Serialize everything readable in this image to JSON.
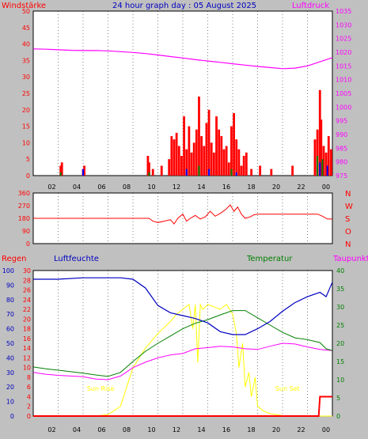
{
  "title": "24 hour graph day : 05 August 2025",
  "x_tick_labels": [
    "02",
    "04",
    "06",
    "08",
    "10",
    "12",
    "14",
    "16",
    "18",
    "20",
    "22",
    "00"
  ],
  "colors": {
    "background": "#c0c0c0",
    "plot_bg": "#ffffff",
    "wind": "#ff0000",
    "gust_low": "#008000",
    "gust_blue": "#0000ff",
    "pressure": "#ff00ff",
    "direction": "#ff0000",
    "humidity": "#0000c0",
    "temperature": "#008000",
    "dewpoint": "#ff00ff",
    "solar": "#ffff00",
    "rain": "#ff0000",
    "sun_marker": "#ffff00"
  },
  "chart_data": [
    {
      "type": "bar",
      "name": "wind-pressure-panel",
      "left_label": "Windstärke",
      "right_label": "Luftdruck",
      "left_ylim": [
        0,
        50
      ],
      "left_ticks": [
        "0",
        "5",
        "10",
        "15",
        "20",
        "25",
        "30",
        "35",
        "40",
        "45",
        "50"
      ],
      "right_ylim": [
        975,
        1035
      ],
      "right_ticks": [
        "975",
        "980",
        "985",
        "990",
        "995",
        "1000",
        "1005",
        "1010",
        "1015",
        "1020",
        "1025",
        "1030",
        "1035"
      ],
      "xlim": [
        0,
        24
      ],
      "wind_bars": {
        "x": [
          2.2,
          2.3,
          4.0,
          4.1,
          9.2,
          9.3,
          9.6,
          10.3,
          10.9,
          11.1,
          11.3,
          11.5,
          11.7,
          11.9,
          12.1,
          12.3,
          12.5,
          12.7,
          12.9,
          13.1,
          13.3,
          13.5,
          13.7,
          13.9,
          14.1,
          14.3,
          14.5,
          14.7,
          14.9,
          15.1,
          15.3,
          15.5,
          15.7,
          15.9,
          16.1,
          16.3,
          16.5,
          16.7,
          16.9,
          17.1,
          17.5,
          18.2,
          19.1,
          20.8,
          22.6,
          22.8,
          23.0,
          23.1,
          23.3,
          23.5,
          23.7,
          23.9
        ],
        "values": [
          3,
          4,
          2,
          3,
          6,
          4,
          2,
          3,
          5,
          12,
          11,
          13,
          9,
          6,
          18,
          8,
          15,
          7,
          10,
          14,
          24,
          12,
          9,
          16,
          20,
          10,
          7,
          18,
          14,
          12,
          8,
          9,
          4,
          15,
          19,
          11,
          8,
          3,
          6,
          7,
          2,
          3,
          2,
          3,
          11,
          14,
          26,
          17,
          9,
          7,
          12,
          8
        ]
      },
      "gust_bars": {
        "x": [
          2.2,
          4.0,
          9.3,
          12.3,
          13.3,
          14.1,
          15.9,
          16.3,
          22.8,
          23.0,
          23.2,
          23.6
        ],
        "values": [
          1,
          2,
          1,
          2,
          3,
          2,
          2,
          1,
          6,
          4,
          5,
          3
        ]
      },
      "pressure": {
        "x": [
          0,
          1,
          2,
          3,
          4,
          5,
          6,
          7,
          8,
          9,
          10,
          11,
          12,
          13,
          14,
          15,
          16,
          17,
          18,
          19,
          20,
          21,
          22,
          23,
          24
        ],
        "values": [
          1021.2,
          1021.1,
          1020.9,
          1020.7,
          1020.6,
          1020.6,
          1020.5,
          1020.2,
          1019.9,
          1019.5,
          1019.0,
          1018.4,
          1017.9,
          1017.3,
          1016.8,
          1016.3,
          1015.8,
          1015.3,
          1014.8,
          1014.4,
          1014.0,
          1014.2,
          1015.0,
          1016.5,
          1018.0
        ]
      }
    },
    {
      "type": "line",
      "name": "wind-direction-panel",
      "ylim": [
        0,
        360
      ],
      "left_ticks": [
        "0",
        "90",
        "180",
        "270",
        "360"
      ],
      "right_labels": [
        "N",
        "W",
        "S",
        "O",
        "N"
      ],
      "x": [
        0,
        9.3,
        9.6,
        10.0,
        10.5,
        11.0,
        11.3,
        11.6,
        12.0,
        12.3,
        12.6,
        13.0,
        13.4,
        13.8,
        14.2,
        14.6,
        15.0,
        15.4,
        15.8,
        16.1,
        16.4,
        16.7,
        17.0,
        17.4,
        17.7,
        18.0,
        22.8,
        23.2,
        23.6,
        24
      ],
      "values": [
        180,
        180,
        160,
        150,
        160,
        170,
        140,
        180,
        210,
        160,
        180,
        200,
        175,
        190,
        230,
        195,
        215,
        240,
        275,
        230,
        260,
        210,
        180,
        190,
        205,
        210,
        210,
        195,
        175,
        175
      ]
    },
    {
      "type": "line",
      "name": "weather-panel",
      "labels": [
        "Regen",
        "Luftfeuchte",
        "Temperatur",
        "Taupunkt"
      ],
      "rain_ticks": [
        "0",
        "2",
        "4",
        "6",
        "8",
        "10",
        "12",
        "14",
        "16",
        "18",
        "20",
        "22",
        "24",
        "26",
        "28",
        "30"
      ],
      "humidity_ticks": [
        "0",
        "10",
        "20",
        "30",
        "40",
        "50",
        "60",
        "70",
        "80",
        "90",
        "100"
      ],
      "temp_ticks": [
        "0",
        "5",
        "10",
        "15",
        "20",
        "25",
        "30",
        "35",
        "40"
      ],
      "rain_ylim": [
        0,
        30
      ],
      "humidity_ylim": [
        0,
        100
      ],
      "temp_ylim": [
        0,
        40
      ],
      "humidity": {
        "x": [
          0,
          2,
          4,
          6,
          7,
          8,
          9,
          10,
          11,
          12,
          13,
          14,
          15,
          16,
          17,
          18,
          19,
          20,
          21,
          22,
          23,
          23.5,
          24
        ],
        "values": [
          94,
          94,
          95,
          95,
          95,
          94,
          88,
          76,
          71,
          69,
          67,
          64,
          58,
          56,
          56,
          60,
          65,
          72,
          78,
          82,
          85,
          82,
          92
        ]
      },
      "temperature": {
        "x": [
          0,
          1,
          2,
          3,
          4,
          5,
          6,
          7,
          8,
          9,
          10,
          11,
          12,
          13,
          14,
          15,
          16,
          17,
          18,
          19,
          20,
          21,
          22,
          23,
          23.5,
          24
        ],
        "values": [
          13.5,
          13.0,
          12.6,
          12.2,
          11.8,
          11.3,
          10.9,
          12.0,
          15.0,
          17.8,
          20.0,
          22.0,
          24.0,
          25.5,
          26.5,
          27.8,
          29.0,
          29.0,
          27.0,
          25.0,
          23.0,
          21.5,
          21.0,
          20.2,
          18.5,
          18.0
        ]
      },
      "dewpoint": {
        "x": [
          0,
          1,
          2,
          3,
          4,
          5,
          6,
          7,
          8,
          9,
          10,
          11,
          12,
          13,
          14,
          15,
          16,
          17,
          18,
          19,
          20,
          21,
          22,
          23,
          24
        ],
        "values": [
          12.0,
          11.5,
          11.2,
          11.0,
          10.8,
          10.2,
          10.0,
          11.0,
          13.3,
          14.8,
          16.0,
          16.8,
          17.2,
          18.5,
          18.8,
          19.2,
          19.0,
          18.5,
          18.3,
          19.2,
          20.0,
          19.8,
          19.0,
          18.3,
          18.0
        ]
      },
      "solar_rain_scale": {
        "x": [
          0,
          5,
          6,
          7,
          7.5,
          8,
          9,
          10,
          11,
          11.5,
          12,
          12.5,
          12.8,
          13.0,
          13.2,
          13.4,
          13.6,
          14,
          15,
          15.5,
          16,
          16.3,
          16.5,
          16.8,
          17.0,
          17.3,
          17.5,
          17.8,
          18.0,
          18.5,
          19,
          19.5,
          20,
          20.5,
          24
        ],
        "values": [
          0,
          0,
          0.3,
          2,
          6,
          10,
          14,
          17,
          19.5,
          21,
          22,
          23,
          18,
          23,
          11,
          23,
          22,
          23,
          22,
          23,
          21,
          17,
          10,
          15,
          6,
          9,
          4,
          8,
          2,
          1,
          0.5,
          0.3,
          0.1,
          0,
          0
        ]
      },
      "rain": {
        "x": [
          0,
          22.9,
          23.0,
          23.9,
          24
        ],
        "values": [
          0,
          0,
          4,
          4,
          4
        ]
      },
      "sun_rise": {
        "label": "Sun Rise",
        "x": 5.4
      },
      "sun_set": {
        "label": "Sun Set",
        "x": 20.4
      }
    }
  ]
}
